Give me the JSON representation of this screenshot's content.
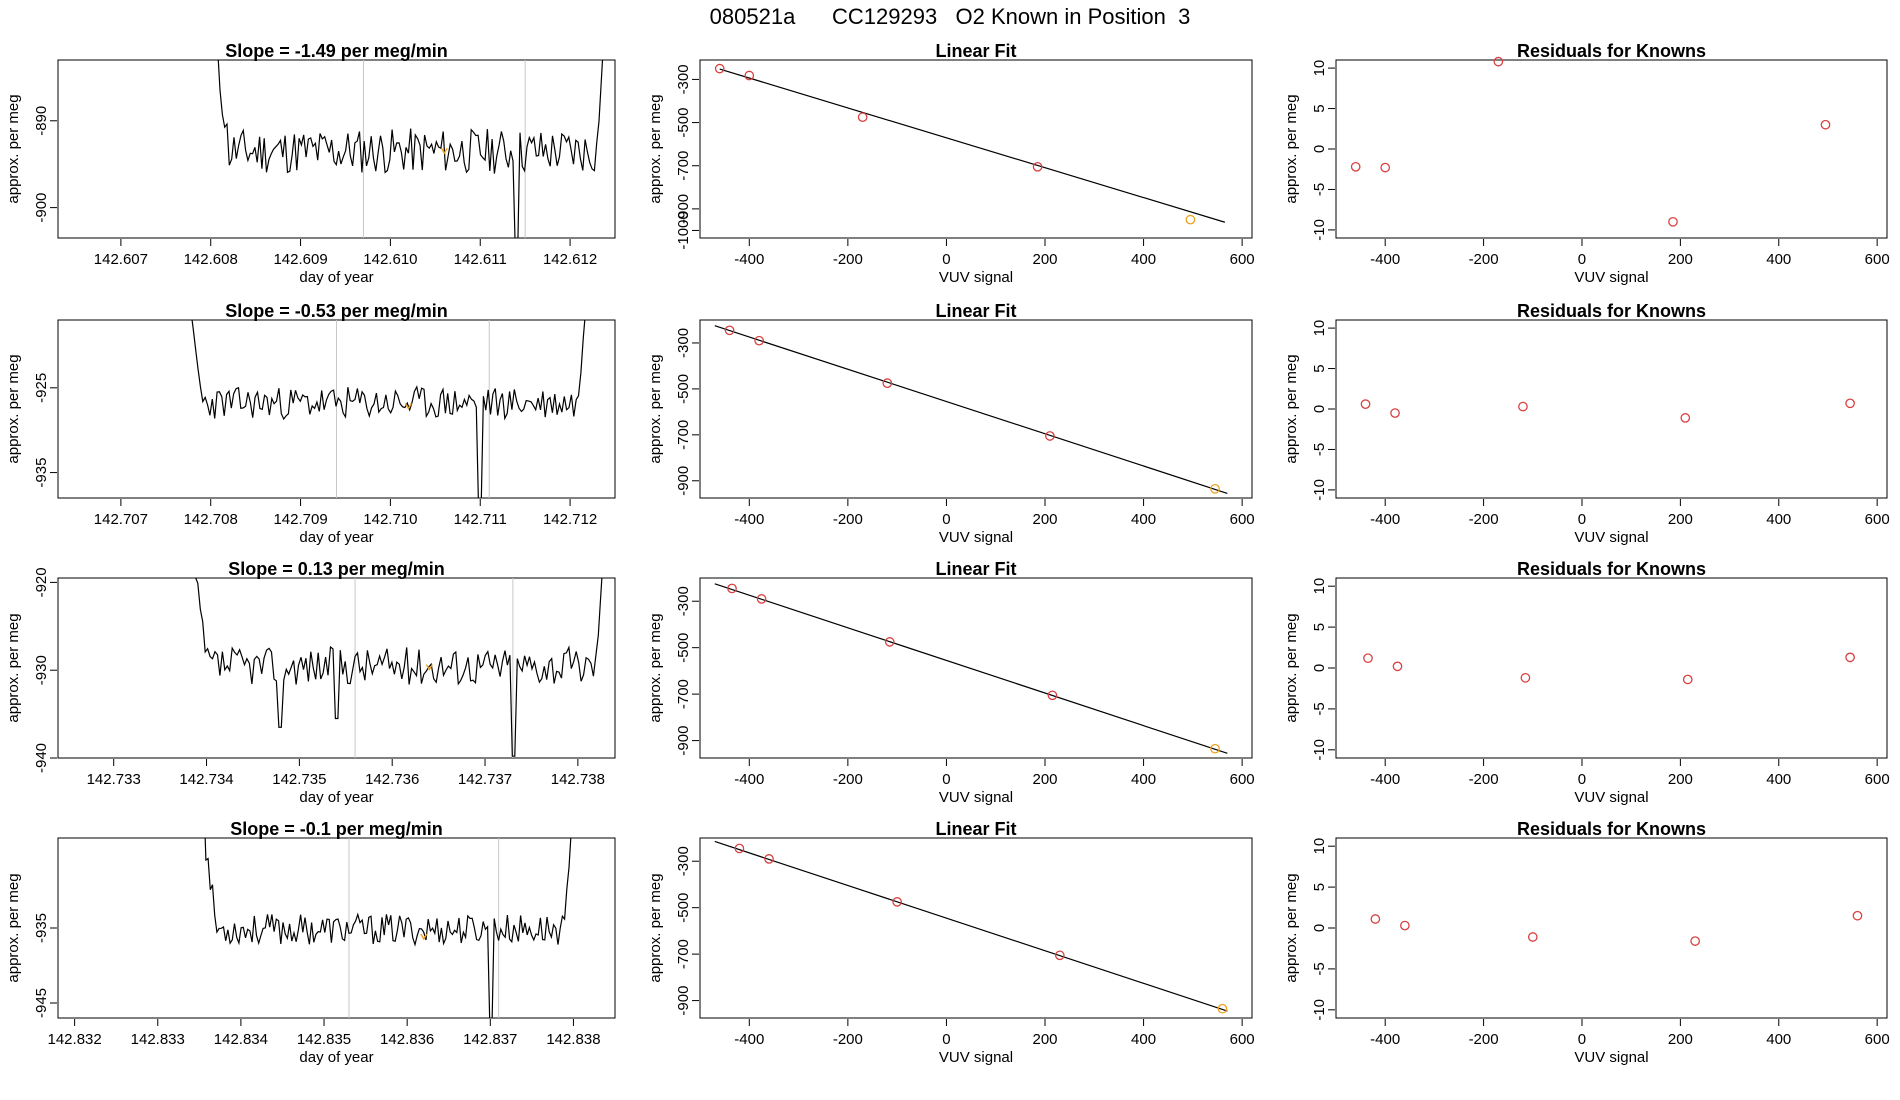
{
  "header": {
    "title": "080521a      CC129293   O2 Known in Position  3"
  },
  "colors": {
    "line": "#000000",
    "grid": "#c8c8c8",
    "point": "#d94040",
    "highlight": "#f0a020"
  },
  "common": {
    "ts_xlabel": "day of year",
    "ylabel": "approx. per meg",
    "fit_title": "Linear Fit",
    "fit_xlabel": "VUV signal",
    "res_title": "Residuals for Knowns",
    "res_xlabel": "VUV signal"
  },
  "chart_data": [
    {
      "row": 1,
      "panel": "timeseries",
      "type": "line",
      "title": "Slope =  -1.49  per meg/min",
      "xlabel": "day of year",
      "ylabel": "approx. per meg",
      "xlim": [
        142.6063,
        142.6125
      ],
      "ylim": [
        -903.5,
        -883
      ],
      "xticks": [
        142.607,
        142.608,
        142.609,
        142.61,
        142.611,
        142.612
      ],
      "xtick_labels": [
        "142.607",
        "142.608",
        "142.609",
        "142.610",
        "142.611",
        "142.612"
      ],
      "yticks": [
        -890,
        -900
      ],
      "ytick_labels": [
        "-890",
        "-900"
      ],
      "vlines": [
        142.6097,
        142.6115
      ],
      "series_start": 142.608,
      "series_end": 142.6124,
      "baseline": -893.5,
      "noise": 2.2,
      "seed": 11,
      "dips": [
        {
          "x": 142.6114,
          "y": -905
        }
      ],
      "highlight": {
        "x": 142.6106,
        "y": -893.5
      }
    },
    {
      "row": 1,
      "panel": "fit",
      "type": "scatter",
      "title": "Linear Fit",
      "xlabel": "VUV signal",
      "ylabel": "approx. per meg",
      "xlim": [
        -500,
        620
      ],
      "ylim": [
        -1035,
        -210
      ],
      "xticks": [
        -400,
        -200,
        0,
        200,
        400,
        600
      ],
      "xtick_labels": [
        "-400",
        "-200",
        "0",
        "200",
        "400",
        "600"
      ],
      "yticks": [
        -300,
        -500,
        -700,
        -900,
        -1000
      ],
      "ytick_labels": [
        "-300",
        "-500",
        "-700",
        "-900",
        "-1000"
      ],
      "points": [
        [
          -460,
          -250
        ],
        [
          -400,
          -282
        ],
        [
          -170,
          -475
        ],
        [
          185,
          -705
        ],
        [
          495,
          -950
        ]
      ],
      "highlight_point": [
        495,
        -950
      ],
      "line": [
        [
          -460,
          -252
        ],
        [
          565,
          -962
        ]
      ]
    },
    {
      "row": 1,
      "panel": "residuals",
      "type": "scatter",
      "title": "Residuals for Knowns",
      "xlabel": "VUV signal",
      "ylabel": "approx. per meg",
      "xlim": [
        -500,
        620
      ],
      "ylim": [
        -11,
        11
      ],
      "xticks": [
        -400,
        -200,
        0,
        200,
        400,
        600
      ],
      "xtick_labels": [
        "-400",
        "-200",
        "0",
        "200",
        "400",
        "600"
      ],
      "yticks": [
        10,
        5,
        0,
        -5,
        -10
      ],
      "ytick_labels": [
        "10",
        "5",
        "0",
        "-5",
        "-10"
      ],
      "points": [
        [
          -460,
          -2.2
        ],
        [
          -400,
          -2.3
        ],
        [
          -170,
          10.8
        ],
        [
          185,
          -9
        ],
        [
          495,
          3
        ]
      ]
    },
    {
      "row": 2,
      "panel": "timeseries",
      "type": "line",
      "title": "Slope =  -0.53  per meg/min",
      "xlabel": "day of year",
      "ylabel": "approx. per meg",
      "xlim": [
        142.7063,
        142.7125
      ],
      "ylim": [
        -938,
        -917
      ],
      "xticks": [
        142.707,
        142.708,
        142.709,
        142.71,
        142.711,
        142.712
      ],
      "xtick_labels": [
        "142.707",
        "142.708",
        "142.709",
        "142.710",
        "142.711",
        "142.712"
      ],
      "yticks": [
        -925,
        -935
      ],
      "ytick_labels": [
        "-925",
        "-935"
      ],
      "vlines": [
        142.7094,
        142.7111
      ],
      "series_start": 142.7077,
      "series_end": 142.7122,
      "baseline": -926.8,
      "noise": 1.6,
      "seed": 23,
      "dips": [
        {
          "x": 142.711,
          "y": -940
        }
      ],
      "highlight": {
        "x": 142.7102,
        "y": -927.2
      }
    },
    {
      "row": 2,
      "panel": "fit",
      "type": "scatter",
      "title": "Linear Fit",
      "xlabel": "VUV signal",
      "ylabel": "approx. per meg",
      "xlim": [
        -500,
        620
      ],
      "ylim": [
        -975,
        -200
      ],
      "xticks": [
        -400,
        -200,
        0,
        200,
        400,
        600
      ],
      "xtick_labels": [
        "-400",
        "-200",
        "0",
        "200",
        "400",
        "600"
      ],
      "yticks": [
        -300,
        -500,
        -700,
        -900
      ],
      "ytick_labels": [
        "-300",
        "-500",
        "-700",
        "-900"
      ],
      "points": [
        [
          -440,
          -245
        ],
        [
          -380,
          -290
        ],
        [
          -120,
          -475
        ],
        [
          210,
          -705
        ],
        [
          545,
          -935
        ]
      ],
      "highlight_point": [
        545,
        -935
      ],
      "line": [
        [
          -470,
          -225
        ],
        [
          570,
          -955
        ]
      ]
    },
    {
      "row": 2,
      "panel": "residuals",
      "type": "scatter",
      "title": "Residuals for Knowns",
      "xlabel": "VUV signal",
      "ylabel": "approx. per meg",
      "xlim": [
        -500,
        620
      ],
      "ylim": [
        -11,
        11
      ],
      "xticks": [
        -400,
        -200,
        0,
        200,
        400,
        600
      ],
      "xtick_labels": [
        "-400",
        "-200",
        "0",
        "200",
        "400",
        "600"
      ],
      "yticks": [
        10,
        5,
        0,
        -5,
        -10
      ],
      "ytick_labels": [
        "10",
        "5",
        "0",
        "-5",
        "-10"
      ],
      "points": [
        [
          -440,
          0.6
        ],
        [
          -380,
          -0.5
        ],
        [
          -120,
          0.3
        ],
        [
          210,
          -1.1
        ],
        [
          545,
          0.7
        ]
      ]
    },
    {
      "row": 3,
      "panel": "timeseries",
      "type": "line",
      "title": "Slope =  0.13  per meg/min",
      "xlabel": "day of year",
      "ylabel": "approx. per meg",
      "xlim": [
        142.7324,
        142.7384
      ],
      "ylim": [
        -940,
        -919.5
      ],
      "xticks": [
        142.733,
        142.734,
        142.735,
        142.736,
        142.737,
        142.738
      ],
      "xtick_labels": [
        "142.733",
        "142.734",
        "142.735",
        "142.736",
        "142.737",
        "142.738"
      ],
      "yticks": [
        -920,
        -930,
        -940
      ],
      "ytick_labels": [
        "-920",
        "-930",
        "-940"
      ],
      "vlines": [
        142.7356,
        142.7373
      ],
      "series_start": 142.7338,
      "series_end": 142.7383,
      "baseline": -929.5,
      "noise": 1.8,
      "seed": 37,
      "dips": [
        {
          "x": 142.7348,
          "y": -936.5
        },
        {
          "x": 142.7354,
          "y": -935.5
        },
        {
          "x": 142.7373,
          "y": -939.8
        }
      ],
      "highlight": {
        "x": 142.7364,
        "y": -929.7
      }
    },
    {
      "row": 3,
      "panel": "fit",
      "type": "scatter",
      "title": "Linear Fit",
      "xlabel": "VUV signal",
      "ylabel": "approx. per meg",
      "xlim": [
        -500,
        620
      ],
      "ylim": [
        -975,
        -200
      ],
      "xticks": [
        -400,
        -200,
        0,
        200,
        400,
        600
      ],
      "xtick_labels": [
        "-400",
        "-200",
        "0",
        "200",
        "400",
        "600"
      ],
      "yticks": [
        -300,
        -500,
        -700,
        -900
      ],
      "ytick_labels": [
        "-300",
        "-500",
        "-700",
        "-900"
      ],
      "points": [
        [
          -435,
          -245
        ],
        [
          -375,
          -290
        ],
        [
          -115,
          -475
        ],
        [
          215,
          -705
        ],
        [
          545,
          -935
        ]
      ],
      "highlight_point": [
        545,
        -935
      ],
      "line": [
        [
          -470,
          -225
        ],
        [
          570,
          -955
        ]
      ]
    },
    {
      "row": 3,
      "panel": "residuals",
      "type": "scatter",
      "title": "Residuals for Knowns",
      "xlabel": "VUV signal",
      "ylabel": "approx. per meg",
      "xlim": [
        -500,
        620
      ],
      "ylim": [
        -11,
        11
      ],
      "xticks": [
        -400,
        -200,
        0,
        200,
        400,
        600
      ],
      "xtick_labels": [
        "-400",
        "-200",
        "0",
        "200",
        "400",
        "600"
      ],
      "yticks": [
        10,
        5,
        0,
        -5,
        -10
      ],
      "ytick_labels": [
        "10",
        "5",
        "0",
        "-5",
        "-10"
      ],
      "points": [
        [
          -435,
          1.2
        ],
        [
          -375,
          0.2
        ],
        [
          -115,
          -1.2
        ],
        [
          215,
          -1.4
        ],
        [
          545,
          1.3
        ]
      ]
    },
    {
      "row": 4,
      "panel": "timeseries",
      "type": "line",
      "title": "Slope =  -0.1  per meg/min",
      "xlabel": "day of year",
      "ylabel": "approx. per meg",
      "xlim": [
        142.8318,
        142.8385
      ],
      "ylim": [
        -947,
        -923
      ],
      "xticks": [
        142.832,
        142.833,
        142.834,
        142.835,
        142.836,
        142.837,
        142.838
      ],
      "xtick_labels": [
        "142.832",
        "142.833",
        "142.834",
        "142.835",
        "142.836",
        "142.837",
        "142.838"
      ],
      "yticks": [
        -935,
        -945
      ],
      "ytick_labels": [
        "-935",
        "-945"
      ],
      "vlines": [
        142.8353,
        142.8371
      ],
      "series_start": 142.8335,
      "series_end": 142.838,
      "baseline": -935.2,
      "noise": 1.7,
      "seed": 53,
      "dips": [
        {
          "x": 142.837,
          "y": -948
        }
      ],
      "highlight": {
        "x": 142.8362,
        "y": -936.2
      }
    },
    {
      "row": 4,
      "panel": "fit",
      "type": "scatter",
      "title": "Linear Fit",
      "xlabel": "VUV signal",
      "ylabel": "approx. per meg",
      "xlim": [
        -500,
        620
      ],
      "ylim": [
        -975,
        -200
      ],
      "xticks": [
        -400,
        -200,
        0,
        200,
        400,
        600
      ],
      "xtick_labels": [
        "-400",
        "-200",
        "0",
        "200",
        "400",
        "600"
      ],
      "yticks": [
        -300,
        -500,
        -700,
        -900
      ],
      "ytick_labels": [
        "-300",
        "-500",
        "-700",
        "-900"
      ],
      "points": [
        [
          -420,
          -245
        ],
        [
          -360,
          -290
        ],
        [
          -100,
          -475
        ],
        [
          230,
          -705
        ],
        [
          560,
          -935
        ]
      ],
      "highlight_point": [
        560,
        -935
      ],
      "line": [
        [
          -470,
          -215
        ],
        [
          570,
          -945
        ]
      ]
    },
    {
      "row": 4,
      "panel": "residuals",
      "type": "scatter",
      "title": "Residuals for Knowns",
      "xlabel": "VUV signal",
      "ylabel": "approx. per meg",
      "xlim": [
        -500,
        620
      ],
      "ylim": [
        -11,
        11
      ],
      "xticks": [
        -400,
        -200,
        0,
        200,
        400,
        600
      ],
      "xtick_labels": [
        "-400",
        "-200",
        "0",
        "200",
        "400",
        "600"
      ],
      "yticks": [
        10,
        5,
        0,
        -5,
        -10
      ],
      "ytick_labels": [
        "10",
        "5",
        "0",
        "-5",
        "-10"
      ],
      "points": [
        [
          -420,
          1.1
        ],
        [
          -360,
          0.3
        ],
        [
          -100,
          -1.1
        ],
        [
          230,
          -1.6
        ],
        [
          560,
          1.5
        ]
      ]
    }
  ]
}
